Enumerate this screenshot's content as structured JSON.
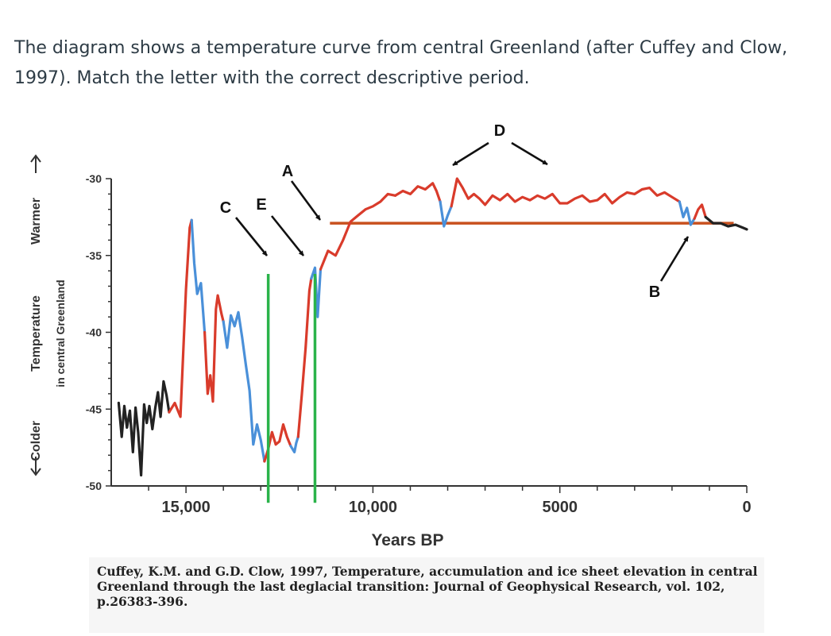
{
  "question": "The diagram shows a temperature curve from central Greenland (after Cuffey and Clow, 1997). Match the letter with the correct descriptive period.",
  "citation": "Cuffey, K.M. and G.D. Clow, 1997, Temperature, accumulation and ice sheet elevation in central Greenland through the last deglacial transition: Journal of Geophysical Research, vol. 102, p.26383-396.",
  "colors": {
    "cold_segment": "#4a90d9",
    "warm_segment": "#d93b2b",
    "baseline": "#222222",
    "holocene_mean_line": "#c8501e",
    "boundary_lines": "#2ab34a"
  },
  "chart_data": {
    "type": "line",
    "xlabel": "Years BP",
    "ylabel": "Temperature",
    "ylabel_left": "Colder",
    "ylabel_right": "Warmer",
    "ylabel_sub": "in central Greenland",
    "x_reversed": true,
    "xlim": [
      17000,
      0
    ],
    "ylim": [
      -50,
      -30
    ],
    "x_ticks": [
      15000,
      10000,
      5000,
      0
    ],
    "x_tick_labels": [
      "15,000",
      "10,000",
      "5000",
      "0"
    ],
    "y_ticks": [
      -30,
      -35,
      -40,
      -45,
      -50
    ],
    "y_tick_labels": [
      "-30",
      "-35",
      "-40",
      "-45",
      "-50"
    ],
    "grid": false,
    "series": [
      {
        "style": "black-early",
        "x": [
          16800,
          16720,
          16650,
          16580,
          16500,
          16420,
          16350,
          16280,
          16200,
          16120,
          16050,
          15980,
          15900,
          15820,
          15750,
          15680,
          15600,
          15520,
          15450
        ],
        "y": [
          -44.6,
          -46.8,
          -44.8,
          -46.2,
          -45.1,
          -47.8,
          -44.9,
          -46.5,
          -49.3,
          -44.7,
          -45.9,
          -44.8,
          -46.3,
          -44.9,
          -43.9,
          -45.5,
          -43.2,
          -44.1,
          -45.2
        ]
      },
      {
        "style": "warm",
        "x": [
          15450,
          15300,
          15150,
          15000,
          14900,
          14850
        ],
        "y": [
          -45.2,
          -44.6,
          -45.5,
          -37.2,
          -33.2,
          -32.7
        ]
      },
      {
        "style": "cold",
        "x": [
          14850,
          14780,
          14700,
          14600,
          14500
        ],
        "y": [
          -32.7,
          -35.5,
          -37.5,
          -36.8,
          -40.0
        ]
      },
      {
        "style": "warm",
        "x": [
          14500,
          14420,
          14350,
          14280,
          14200,
          14150,
          14050,
          14000
        ],
        "y": [
          -40.0,
          -44.0,
          -42.8,
          -44.5,
          -38.5,
          -37.6,
          -38.8,
          -39.3
        ]
      },
      {
        "style": "cold",
        "x": [
          14000,
          13900,
          13800,
          13700,
          13600,
          13500,
          13400,
          13300,
          13200,
          13100,
          13000,
          12900
        ],
        "y": [
          -39.3,
          -41.0,
          -38.9,
          -39.6,
          -38.7,
          -40.3,
          -42.1,
          -43.8,
          -47.3,
          -46.0,
          -47.0,
          -48.4
        ]
      },
      {
        "style": "warm",
        "x": [
          12900,
          12800,
          12700,
          12600,
          12500,
          12400,
          12300,
          12200
        ],
        "y": [
          -48.4,
          -47.6,
          -46.5,
          -47.3,
          -47.1,
          -46.0,
          -46.8,
          -47.4
        ]
      },
      {
        "style": "cold",
        "x": [
          12200,
          12100,
          12050,
          12000
        ],
        "y": [
          -47.4,
          -47.8,
          -47.2,
          -46.8
        ]
      },
      {
        "style": "warm",
        "x": [
          12000,
          11900,
          11800,
          11700,
          11650
        ],
        "y": [
          -46.8,
          -44.0,
          -41.0,
          -37.3,
          -36.5
        ]
      },
      {
        "style": "cold",
        "x": [
          11650,
          11550,
          11480,
          11400
        ],
        "y": [
          -36.5,
          -35.8,
          -39.0,
          -35.9
        ]
      },
      {
        "style": "warm",
        "x": [
          11400,
          11200,
          11000,
          10800,
          10700,
          10600,
          10400,
          10200,
          10000,
          9800,
          9600,
          9400
        ],
        "y": [
          -35.9,
          -34.7,
          -35.0,
          -34.0,
          -33.4,
          -32.8,
          -32.4,
          -32.0,
          -31.8,
          -31.5,
          -31.0,
          -31.1
        ]
      },
      {
        "style": "warm",
        "x": [
          9400,
          9200,
          9000,
          8800,
          8600,
          8400,
          8300,
          8200
        ],
        "y": [
          -31.1,
          -30.8,
          -31.0,
          -30.5,
          -30.7,
          -30.3,
          -30.8,
          -31.5
        ]
      },
      {
        "style": "cold",
        "x": [
          8200,
          8100,
          8000,
          7900
        ],
        "y": [
          -31.5,
          -33.1,
          -32.4,
          -31.8
        ]
      },
      {
        "style": "warm",
        "x": [
          7900,
          7750,
          7600,
          7450,
          7300,
          7150,
          7000,
          6800,
          6600,
          6400,
          6200,
          6000,
          5800,
          5600,
          5400,
          5200,
          5000,
          4800,
          4600,
          4400,
          4200,
          4000,
          3800,
          3600,
          3400,
          3200,
          3000,
          2800,
          2600,
          2400,
          2200,
          2000,
          1800
        ],
        "y": [
          -31.8,
          -30.0,
          -30.6,
          -31.3,
          -31.0,
          -31.3,
          -31.7,
          -31.1,
          -31.4,
          -31.0,
          -31.5,
          -31.2,
          -31.4,
          -31.1,
          -31.3,
          -31.0,
          -31.6,
          -31.6,
          -31.3,
          -31.1,
          -31.5,
          -31.4,
          -31.0,
          -31.6,
          -31.2,
          -30.9,
          -31.0,
          -30.7,
          -30.6,
          -31.1,
          -30.9,
          -31.2,
          -31.5
        ]
      },
      {
        "style": "cold",
        "x": [
          1800,
          1700,
          1600,
          1500,
          1400
        ],
        "y": [
          -31.5,
          -32.5,
          -31.9,
          -33.0,
          -32.6
        ]
      },
      {
        "style": "warm",
        "x": [
          1400,
          1300,
          1200,
          1100
        ],
        "y": [
          -32.6,
          -32.0,
          -31.7,
          -32.5
        ]
      },
      {
        "style": "black-late",
        "x": [
          1100,
          900,
          700,
          500,
          300,
          100,
          0
        ],
        "y": [
          -32.5,
          -32.9,
          -32.9,
          -33.1,
          -33.0,
          -33.2,
          -33.3
        ]
      }
    ],
    "reference_line": {
      "y": -32.9,
      "x": [
        11150,
        350
      ]
    },
    "boundaries_x": [
      12800,
      11550
    ],
    "annotations": [
      {
        "label": "A"
      },
      {
        "label": "B"
      },
      {
        "label": "C"
      },
      {
        "label": "D"
      },
      {
        "label": "E"
      }
    ]
  }
}
